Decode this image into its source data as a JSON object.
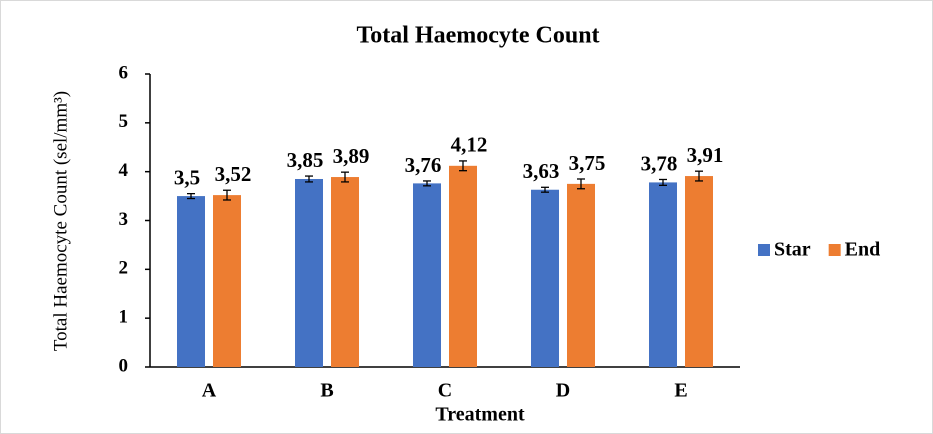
{
  "chart_data": {
    "type": "bar",
    "title": "Total Haemocyte Count",
    "x_label": "Treatment",
    "y_label": "Total Haemocyte Count  (sel/mm³)",
    "categories": [
      "A",
      "B",
      "C",
      "D",
      "E"
    ],
    "series": [
      {
        "name": "Star",
        "color": "#4472c4",
        "values": [
          3.5,
          3.85,
          3.76,
          3.63,
          3.78
        ],
        "value_labels": [
          "3,5",
          "3,85",
          "3,76",
          "3,63",
          "3,78"
        ],
        "errors": [
          0.05,
          0.06,
          0.05,
          0.05,
          0.06
        ]
      },
      {
        "name": "End",
        "color": "#ed7d31",
        "values": [
          3.52,
          3.89,
          4.12,
          3.75,
          3.91
        ],
        "value_labels": [
          "3,52",
          "3,89",
          "4,12",
          "3,75",
          "3,91"
        ],
        "errors": [
          0.1,
          0.1,
          0.1,
          0.1,
          0.1
        ]
      }
    ],
    "ylim": [
      0,
      6
    ],
    "yticks": [
      0,
      1,
      2,
      3,
      4,
      5,
      6
    ],
    "grid": false,
    "legend": "right"
  }
}
